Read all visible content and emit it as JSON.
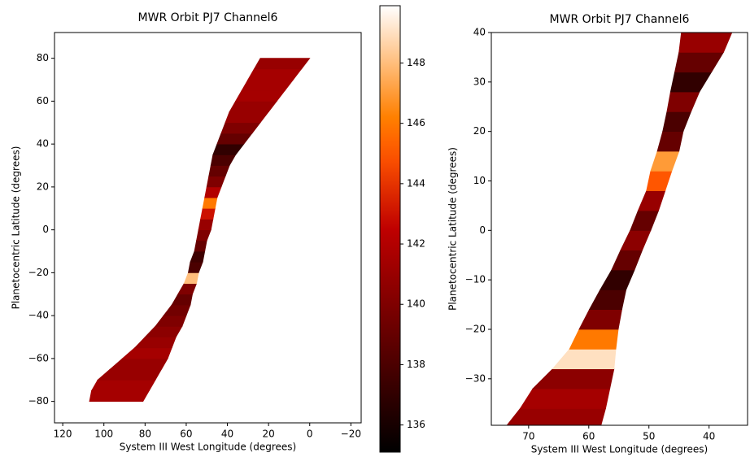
{
  "chart_data": [
    {
      "type": "swath",
      "title": "MWR Orbit PJ7 Channel6",
      "xlabel": "System III West Longitude (degrees)",
      "ylabel": "Planetocentric Latitude (degrees)",
      "xlim": [
        124,
        -25
      ],
      "ylim": [
        -90,
        92
      ],
      "xticks": [
        120,
        100,
        80,
        60,
        40,
        20,
        0,
        {
          "value": -20,
          "label": "−20"
        }
      ],
      "yticks": [
        {
          "value": -80,
          "label": "−80"
        },
        {
          "value": -60,
          "label": "−60"
        },
        {
          "value": -40,
          "label": "−40"
        },
        {
          "value": -20,
          "label": "−20"
        },
        0,
        20,
        40,
        60,
        80
      ],
      "colormap": "gist_heat",
      "colorbar": {
        "clim": [
          135.1,
          149.9
        ],
        "ticks": [
          136,
          138,
          140,
          142,
          144,
          146,
          148
        ]
      },
      "lat": [
        -80,
        -75,
        -70,
        -65,
        -60,
        -55,
        -50,
        -45,
        -40,
        -35,
        -30,
        -25,
        -20,
        -15,
        -10,
        -5,
        0,
        5,
        10,
        15,
        20,
        25,
        30,
        35,
        40,
        45,
        50,
        55,
        60,
        65,
        70,
        75,
        80
      ],
      "lon_west": [
        107,
        106,
        103,
        97,
        91,
        85,
        80,
        75,
        71,
        67,
        64,
        61,
        59,
        58,
        56,
        55,
        54,
        53,
        52,
        51,
        50,
        49,
        48,
        47,
        45,
        43,
        41,
        39,
        36,
        33,
        30,
        27,
        24
      ],
      "lon_east": [
        81,
        78,
        75,
        72,
        69,
        67,
        65,
        62,
        60,
        58,
        57,
        55,
        54,
        52,
        51,
        50,
        48,
        47,
        46,
        45,
        43,
        41,
        39,
        36,
        32,
        28,
        24,
        20,
        16,
        12,
        8,
        4,
        0
      ],
      "temperature": [
        141.5,
        141.5,
        141,
        141,
        141.5,
        141,
        140.5,
        140,
        139.5,
        139,
        140,
        148,
        138,
        137.5,
        139,
        140,
        141,
        143,
        146,
        142,
        140,
        139,
        138,
        137,
        139,
        140,
        141,
        141,
        141.5,
        141.5,
        141.5,
        141
      ]
    },
    {
      "type": "swath",
      "title": "MWR Orbit PJ7 Channel6",
      "xlabel": "System III West Longitude (degrees)",
      "ylabel": "Planetocentric Latitude (degrees)",
      "xlim": [
        76.2,
        33.6
      ],
      "ylim": [
        -39.4,
        40
      ],
      "xticks": [
        70,
        60,
        50,
        40
      ],
      "yticks": [
        {
          "value": -30,
          "label": "−30"
        },
        {
          "value": -20,
          "label": "−20"
        },
        {
          "value": -10,
          "label": "−10"
        },
        0,
        10,
        20,
        30,
        40
      ],
      "colormap": "gist_heat",
      "clim": [
        135.1,
        149.9
      ],
      "lat": [
        -40,
        -36,
        -32,
        -28,
        -24,
        -20,
        -16,
        -12,
        -8,
        -4,
        0,
        4,
        8,
        12,
        16,
        20,
        24,
        28,
        32,
        36,
        40
      ],
      "lon_west": [
        74,
        71.4,
        69.3,
        66,
        63.2,
        61.6,
        59.9,
        58.1,
        56.2,
        54.7,
        53.1,
        51.8,
        50.4,
        49.7,
        48.6,
        47.7,
        47,
        46.4,
        45.7,
        45,
        44.6
      ],
      "lon_east": [
        58.1,
        57.2,
        56.5,
        55.8,
        55.5,
        55.1,
        54.5,
        53.8,
        52.4,
        51.1,
        49.7,
        48.4,
        47.3,
        46.2,
        45,
        44.3,
        43,
        41.6,
        39.6,
        37.6,
        36.2
      ],
      "temperature": [
        141,
        141.5,
        140.5,
        149,
        146,
        140,
        138,
        137,
        139,
        140.5,
        139,
        141,
        145,
        147,
        139,
        138,
        140,
        137,
        139,
        141
      ]
    }
  ]
}
